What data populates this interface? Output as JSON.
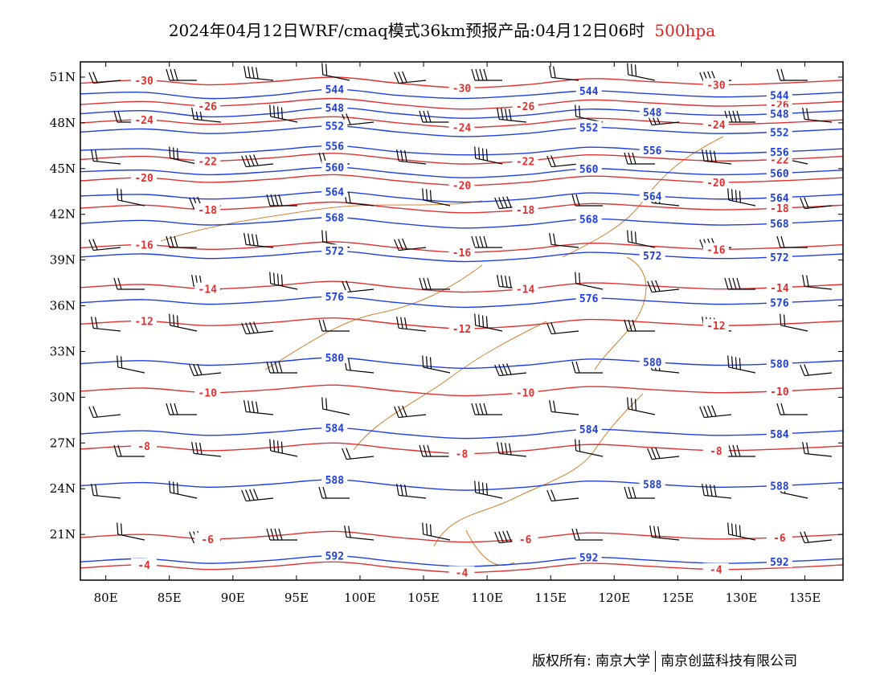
{
  "title": {
    "main": "2024年04月12日WRF/cmaq模式36km预报产品:04月12日06时",
    "level": "500hpa"
  },
  "axes": {
    "lat_labels": [
      "51N",
      "48N",
      "45N",
      "42N",
      "39N",
      "36N",
      "33N",
      "30N",
      "27N",
      "24N",
      "21N"
    ],
    "lat_values": [
      51,
      48,
      45,
      42,
      39,
      36,
      33,
      30,
      27,
      24,
      21
    ],
    "lon_labels": [
      "80E",
      "85E",
      "90E",
      "95E",
      "100E",
      "105E",
      "110E",
      "115E",
      "120E",
      "125E",
      "130E",
      "135E"
    ],
    "lon_values": [
      80,
      85,
      90,
      95,
      100,
      105,
      110,
      115,
      120,
      125,
      130,
      135
    ],
    "lon_range": [
      78,
      138
    ],
    "lat_range": [
      18,
      52
    ]
  },
  "colors": {
    "height_contour": "#1f3fe0",
    "temperature_contour": "#e03030",
    "boundary": "#d08030",
    "wind_barb": "#000000",
    "level_text": "#e02020"
  },
  "height_contours": [
    {
      "value": "544",
      "lats": [
        49.9,
        50.0,
        49.6,
        49.8,
        50.2,
        49.8,
        49.6,
        49.8,
        50.1,
        49.9,
        49.7,
        49.8,
        50.0
      ]
    },
    {
      "value": "548",
      "lats": [
        48.6,
        48.8,
        48.4,
        48.6,
        49.0,
        48.6,
        48.3,
        48.5,
        48.9,
        48.7,
        48.5,
        48.6,
        48.8
      ]
    },
    {
      "value": "552",
      "lats": [
        47.4,
        47.6,
        47.3,
        47.5,
        47.8,
        47.4,
        47.1,
        47.3,
        47.7,
        47.5,
        47.3,
        47.4,
        47.6
      ]
    },
    {
      "value": "556",
      "lats": [
        46.2,
        46.3,
        46.0,
        46.2,
        46.5,
        46.1,
        45.9,
        46.0,
        46.4,
        46.2,
        46.0,
        46.1,
        46.3
      ]
    },
    {
      "value": "560",
      "lats": [
        44.8,
        44.9,
        44.6,
        44.8,
        45.1,
        44.7,
        44.4,
        44.6,
        45.0,
        44.8,
        44.6,
        44.7,
        44.9
      ]
    },
    {
      "value": "564",
      "lats": [
        43.2,
        43.3,
        43.0,
        43.2,
        43.5,
        43.1,
        42.8,
        43.0,
        43.4,
        43.2,
        43.0,
        43.1,
        43.3
      ]
    },
    {
      "value": "568",
      "lats": [
        41.4,
        41.6,
        41.3,
        41.5,
        41.8,
        41.4,
        41.1,
        41.3,
        41.7,
        41.5,
        41.3,
        41.4,
        41.6
      ]
    },
    {
      "value": "572",
      "lats": [
        39.2,
        39.4,
        39.1,
        39.3,
        39.6,
        39.2,
        38.9,
        39.1,
        39.5,
        39.3,
        39.1,
        39.2,
        39.4
      ]
    },
    {
      "value": "576",
      "lats": [
        36.2,
        36.4,
        36.1,
        36.3,
        36.6,
        36.2,
        35.9,
        36.1,
        36.5,
        36.3,
        36.1,
        36.2,
        36.4
      ]
    },
    {
      "value": "580",
      "lats": [
        32.2,
        32.4,
        32.1,
        32.3,
        32.6,
        32.2,
        31.9,
        32.1,
        32.5,
        32.3,
        32.1,
        32.2,
        32.4
      ]
    },
    {
      "value": "584",
      "lats": [
        27.6,
        27.8,
        27.5,
        27.7,
        28.0,
        27.6,
        27.3,
        27.5,
        27.9,
        27.7,
        27.5,
        27.6,
        27.8
      ]
    },
    {
      "value": "588",
      "lats": [
        24.2,
        24.4,
        24.1,
        24.3,
        24.6,
        24.2,
        23.9,
        24.1,
        24.5,
        24.3,
        24.1,
        24.2,
        24.4
      ]
    },
    {
      "value": "592",
      "lats": [
        19.2,
        19.4,
        19.1,
        19.3,
        19.6,
        19.2,
        18.9,
        19.1,
        19.5,
        19.3,
        19.1,
        19.2,
        19.4
      ]
    }
  ],
  "temperature_contours": [
    {
      "value": "-30",
      "lats": [
        50.6,
        50.8,
        50.5,
        50.7,
        51.0,
        50.6,
        50.3,
        50.5,
        50.9,
        50.7,
        50.5,
        50.6,
        50.8
      ]
    },
    {
      "value": "-26",
      "lats": [
        49.2,
        49.4,
        49.1,
        49.3,
        49.6,
        49.2,
        48.9,
        49.1,
        49.5,
        49.3,
        49.1,
        49.2,
        49.4
      ]
    },
    {
      "value": "-24",
      "lats": [
        48.0,
        48.2,
        47.9,
        48.1,
        48.4,
        48.0,
        47.7,
        47.9,
        48.3,
        48.1,
        47.9,
        48.0,
        48.2
      ]
    },
    {
      "value": "-22",
      "lats": [
        45.6,
        45.8,
        45.5,
        45.7,
        46.0,
        45.6,
        45.3,
        45.5,
        45.9,
        45.7,
        45.5,
        45.6,
        45.8
      ]
    },
    {
      "value": "-20",
      "lats": [
        44.2,
        44.4,
        44.1,
        44.3,
        44.6,
        44.2,
        43.9,
        44.1,
        44.5,
        44.3,
        44.1,
        44.2,
        44.4
      ]
    },
    {
      "value": "-18",
      "lats": [
        42.4,
        42.6,
        42.3,
        42.5,
        42.8,
        42.4,
        42.1,
        42.3,
        42.7,
        42.5,
        42.3,
        42.4,
        42.6
      ]
    },
    {
      "value": "-16",
      "lats": [
        39.8,
        40.0,
        39.7,
        39.9,
        40.2,
        39.8,
        39.5,
        39.7,
        40.1,
        39.9,
        39.7,
        39.8,
        40.0
      ]
    },
    {
      "value": "-14",
      "lats": [
        37.2,
        37.4,
        37.1,
        37.3,
        37.6,
        37.2,
        36.9,
        37.1,
        37.5,
        37.3,
        37.1,
        37.2,
        37.4
      ]
    },
    {
      "value": "-12",
      "lats": [
        34.8,
        35.0,
        34.7,
        34.9,
        35.2,
        34.8,
        34.5,
        34.7,
        35.1,
        34.9,
        34.7,
        34.8,
        35.0
      ]
    },
    {
      "value": "-10",
      "lats": [
        30.4,
        30.6,
        30.3,
        30.5,
        30.8,
        30.4,
        30.1,
        30.3,
        30.7,
        30.5,
        30.3,
        30.4,
        30.6
      ]
    },
    {
      "value": "-8",
      "lats": [
        26.6,
        26.8,
        26.5,
        26.7,
        27.0,
        26.6,
        26.3,
        26.5,
        26.9,
        26.7,
        26.5,
        26.6,
        26.8
      ]
    },
    {
      "value": "-6",
      "lats": [
        20.8,
        21.0,
        20.7,
        20.9,
        21.2,
        20.8,
        20.5,
        20.7,
        21.1,
        20.9,
        20.7,
        20.8,
        21.0
      ]
    },
    {
      "value": "-4",
      "lats": [
        18.8,
        19.0,
        18.7,
        18.9,
        19.2,
        18.8,
        18.5,
        18.7,
        19.1,
        18.9,
        18.7,
        18.8,
        19.0
      ]
    }
  ],
  "footer": {
    "left": "版权所有: 南京大学",
    "right": "南京创蓝科技有限公司"
  }
}
